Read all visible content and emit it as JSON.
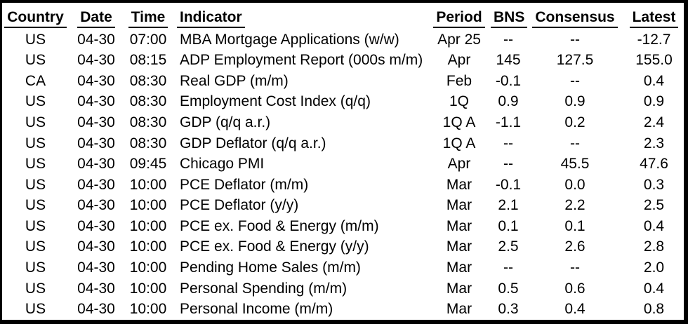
{
  "colors": {
    "background": "#ffffff",
    "border": "#000000",
    "text": "#000000"
  },
  "table": {
    "columns": [
      {
        "key": "country",
        "label": "Country"
      },
      {
        "key": "date",
        "label": "Date"
      },
      {
        "key": "time",
        "label": "Time"
      },
      {
        "key": "indicator",
        "label": "Indicator"
      },
      {
        "key": "period",
        "label": "Period"
      },
      {
        "key": "bns",
        "label": "BNS"
      },
      {
        "key": "consensus",
        "label": "Consensus"
      },
      {
        "key": "latest",
        "label": "Latest"
      }
    ],
    "rows": [
      {
        "country": "US",
        "date": "04-30",
        "time": "07:00",
        "indicator": "MBA Mortgage Applications (w/w)",
        "period": "Apr 25",
        "bns": "--",
        "consensus": "--",
        "latest": "-12.7"
      },
      {
        "country": "US",
        "date": "04-30",
        "time": "08:15",
        "indicator": "ADP Employment Report (000s m/m)",
        "period": "Apr",
        "bns": "145",
        "consensus": "127.5",
        "latest": "155.0"
      },
      {
        "country": "CA",
        "date": "04-30",
        "time": "08:30",
        "indicator": "Real GDP (m/m)",
        "period": "Feb",
        "bns": "-0.1",
        "consensus": "--",
        "latest": "0.4"
      },
      {
        "country": "US",
        "date": "04-30",
        "time": "08:30",
        "indicator": "Employment Cost Index (q/q)",
        "period": "1Q",
        "bns": "0.9",
        "consensus": "0.9",
        "latest": "0.9"
      },
      {
        "country": "US",
        "date": "04-30",
        "time": "08:30",
        "indicator": "GDP (q/q a.r.)",
        "period": "1Q A",
        "bns": "-1.1",
        "consensus": "0.2",
        "latest": "2.4"
      },
      {
        "country": "US",
        "date": "04-30",
        "time": "08:30",
        "indicator": "GDP Deflator (q/q a.r.)",
        "period": "1Q A",
        "bns": "--",
        "consensus": "--",
        "latest": "2.3"
      },
      {
        "country": "US",
        "date": "04-30",
        "time": "09:45",
        "indicator": "Chicago PMI",
        "period": "Apr",
        "bns": "--",
        "consensus": "45.5",
        "latest": "47.6"
      },
      {
        "country": "US",
        "date": "04-30",
        "time": "10:00",
        "indicator": "PCE Deflator (m/m)",
        "period": "Mar",
        "bns": "-0.1",
        "consensus": "0.0",
        "latest": "0.3"
      },
      {
        "country": "US",
        "date": "04-30",
        "time": "10:00",
        "indicator": "PCE Deflator (y/y)",
        "period": "Mar",
        "bns": "2.1",
        "consensus": "2.2",
        "latest": "2.5"
      },
      {
        "country": "US",
        "date": "04-30",
        "time": "10:00",
        "indicator": "PCE ex. Food & Energy (m/m)",
        "period": "Mar",
        "bns": "0.1",
        "consensus": "0.1",
        "latest": "0.4"
      },
      {
        "country": "US",
        "date": "04-30",
        "time": "10:00",
        "indicator": "PCE ex. Food & Energy (y/y)",
        "period": "Mar",
        "bns": "2.5",
        "consensus": "2.6",
        "latest": "2.8"
      },
      {
        "country": "US",
        "date": "04-30",
        "time": "10:00",
        "indicator": "Pending Home Sales (m/m)",
        "period": "Mar",
        "bns": "--",
        "consensus": "--",
        "latest": "2.0"
      },
      {
        "country": "US",
        "date": "04-30",
        "time": "10:00",
        "indicator": "Personal Spending (m/m)",
        "period": "Mar",
        "bns": "0.5",
        "consensus": "0.6",
        "latest": "0.4"
      },
      {
        "country": "US",
        "date": "04-30",
        "time": "10:00",
        "indicator": "Personal Income (m/m)",
        "period": "Mar",
        "bns": "0.3",
        "consensus": "0.4",
        "latest": "0.8"
      }
    ]
  }
}
